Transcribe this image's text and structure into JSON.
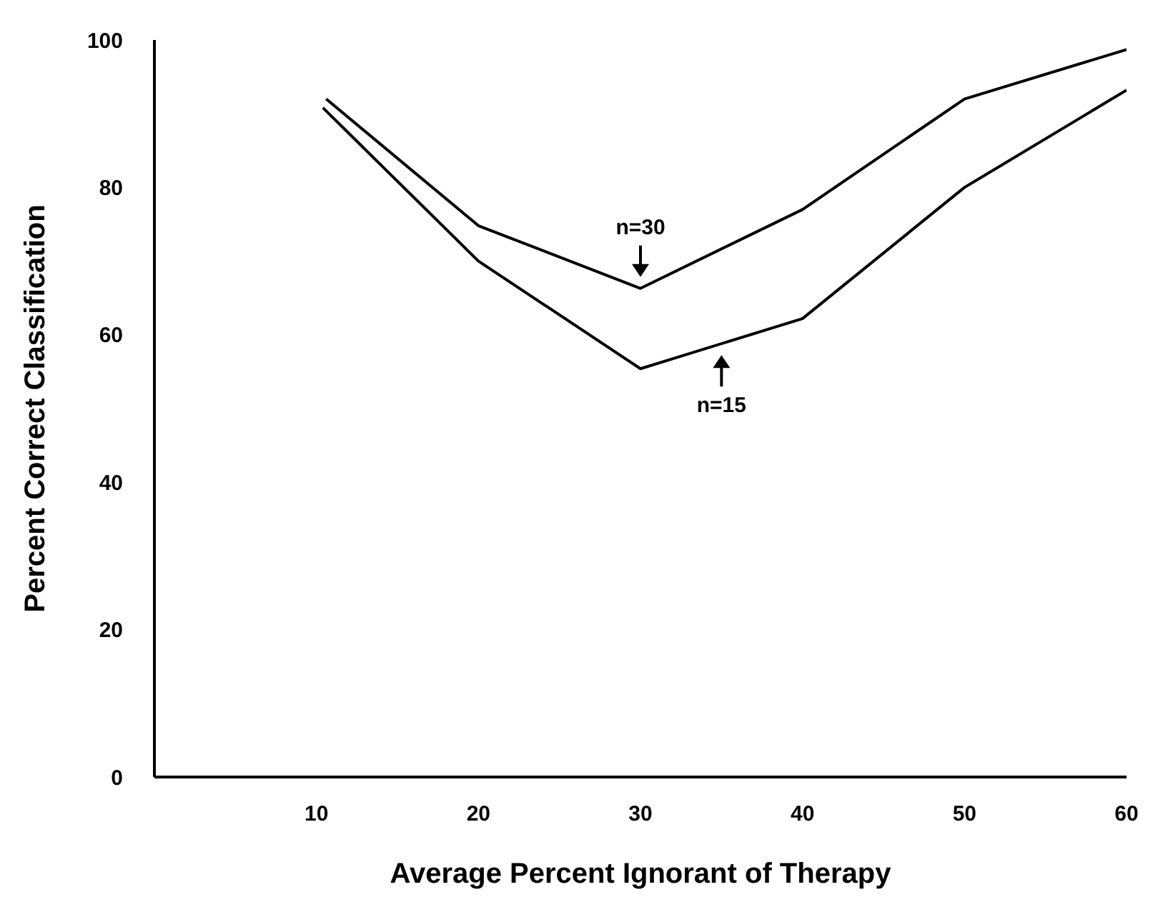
{
  "chart_data": {
    "type": "line",
    "xlabel": "Average Percent Ignorant of Therapy",
    "ylabel": "Percent Correct Classification",
    "xlim": [
      0,
      60
    ],
    "ylim": [
      0,
      100
    ],
    "xticks": [
      10,
      20,
      30,
      40,
      50,
      60
    ],
    "yticks": [
      0,
      20,
      40,
      60,
      80,
      100
    ],
    "grid": false,
    "legend": false,
    "marker": "none",
    "line_style": "solid",
    "series": [
      {
        "color": "#000000",
        "x": [
          10.6,
          20,
          30,
          40,
          50,
          60
        ],
        "values": [
          92,
          74.8,
          66.3,
          77,
          92,
          98.7
        ]
      },
      {
        "color": "#000000",
        "x": [
          10.4,
          20,
          30,
          40,
          50,
          60
        ],
        "values": [
          90.8,
          70,
          55.4,
          62.2,
          80,
          93.2
        ]
      }
    ],
    "annotations": [
      {
        "text": "n=30",
        "x": 30,
        "y": 66.3
      },
      {
        "text": "n=15",
        "x": 35,
        "y": 58.8
      }
    ]
  }
}
